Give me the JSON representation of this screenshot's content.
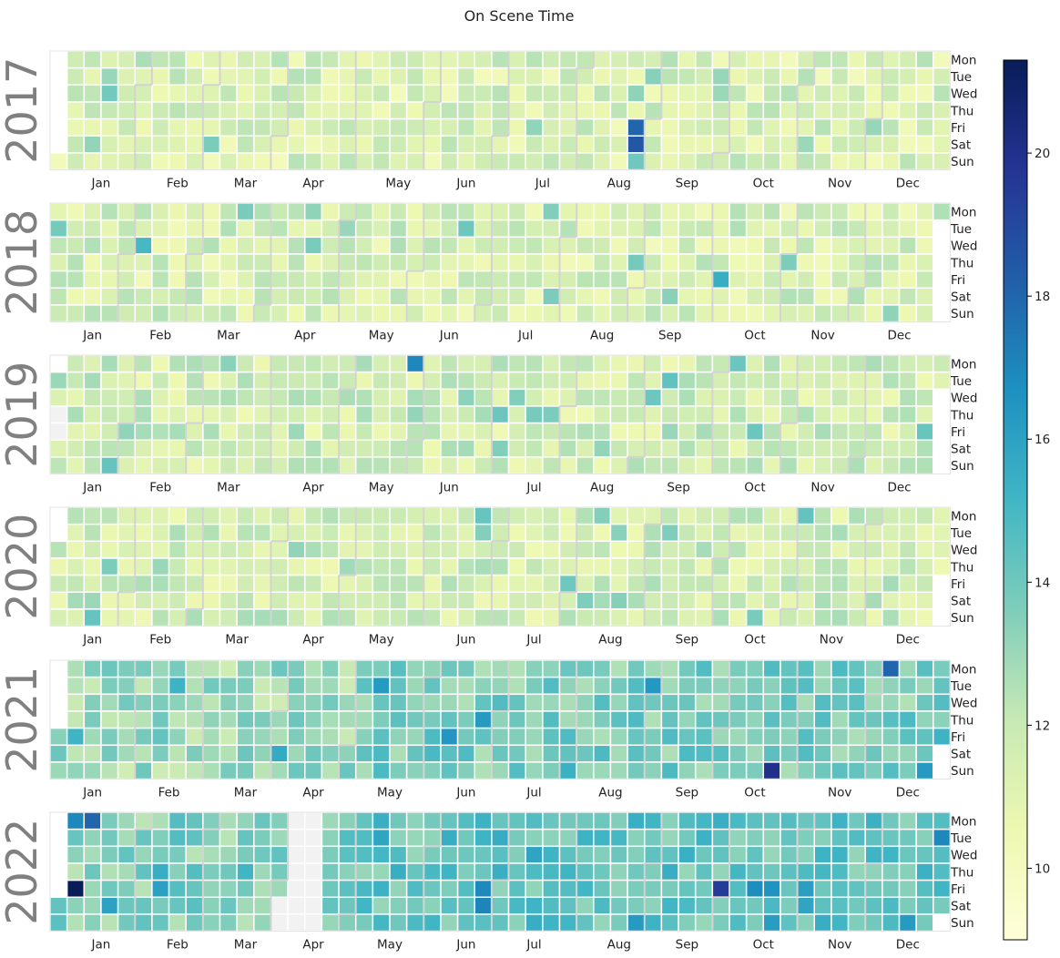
{
  "chart_data": {
    "type": "heatmap",
    "title": "On Scene Time",
    "years": [
      "2017",
      "2018",
      "2019",
      "2020",
      "2021",
      "2022"
    ],
    "day_labels": [
      "Mon",
      "Tue",
      "Wed",
      "Thu",
      "Fri",
      "Sat",
      "Sun"
    ],
    "month_labels": [
      "Jan",
      "Feb",
      "Mar",
      "Apr",
      "May",
      "Jun",
      "Jul",
      "Aug",
      "Sep",
      "Oct",
      "Nov",
      "Dec"
    ],
    "colorbar": {
      "min": 9,
      "max": 21.3,
      "ticks": [
        10,
        12,
        14,
        16,
        18,
        20
      ],
      "colormap": "YlGnBu"
    },
    "yearly_typical": {
      "2017": 11.3,
      "2018": 11.4,
      "2019": 11.6,
      "2020": 11.6,
      "2021": 13.2,
      "2022": 13.8
    },
    "notable_days": [
      {
        "date": "2017-08-25",
        "value": 18.0
      },
      {
        "date": "2017-08-26",
        "value": 18.5
      },
      {
        "date": "2017-08-27",
        "value": 14.0
      },
      {
        "date": "2018-02-07",
        "value": 15.0
      },
      {
        "date": "2018-10-05",
        "value": 15.5
      },
      {
        "date": "2019-05-27",
        "value": 17.0
      },
      {
        "date": "2021-10-24",
        "value": 20.0
      },
      {
        "date": "2021-12-06",
        "value": 18.0
      },
      {
        "date": "2022-01-07",
        "value": 21.3
      },
      {
        "date": "2022-01-03",
        "value": 17.0
      },
      {
        "date": "2022-01-10",
        "value": 18.0
      },
      {
        "date": "2022-09-30",
        "value": 19.5
      }
    ],
    "missing_ranges": [
      {
        "start": "2019-01-03",
        "end": "2019-01-04"
      },
      {
        "start": "2022-04-02",
        "end": "2022-04-17"
      }
    ]
  }
}
